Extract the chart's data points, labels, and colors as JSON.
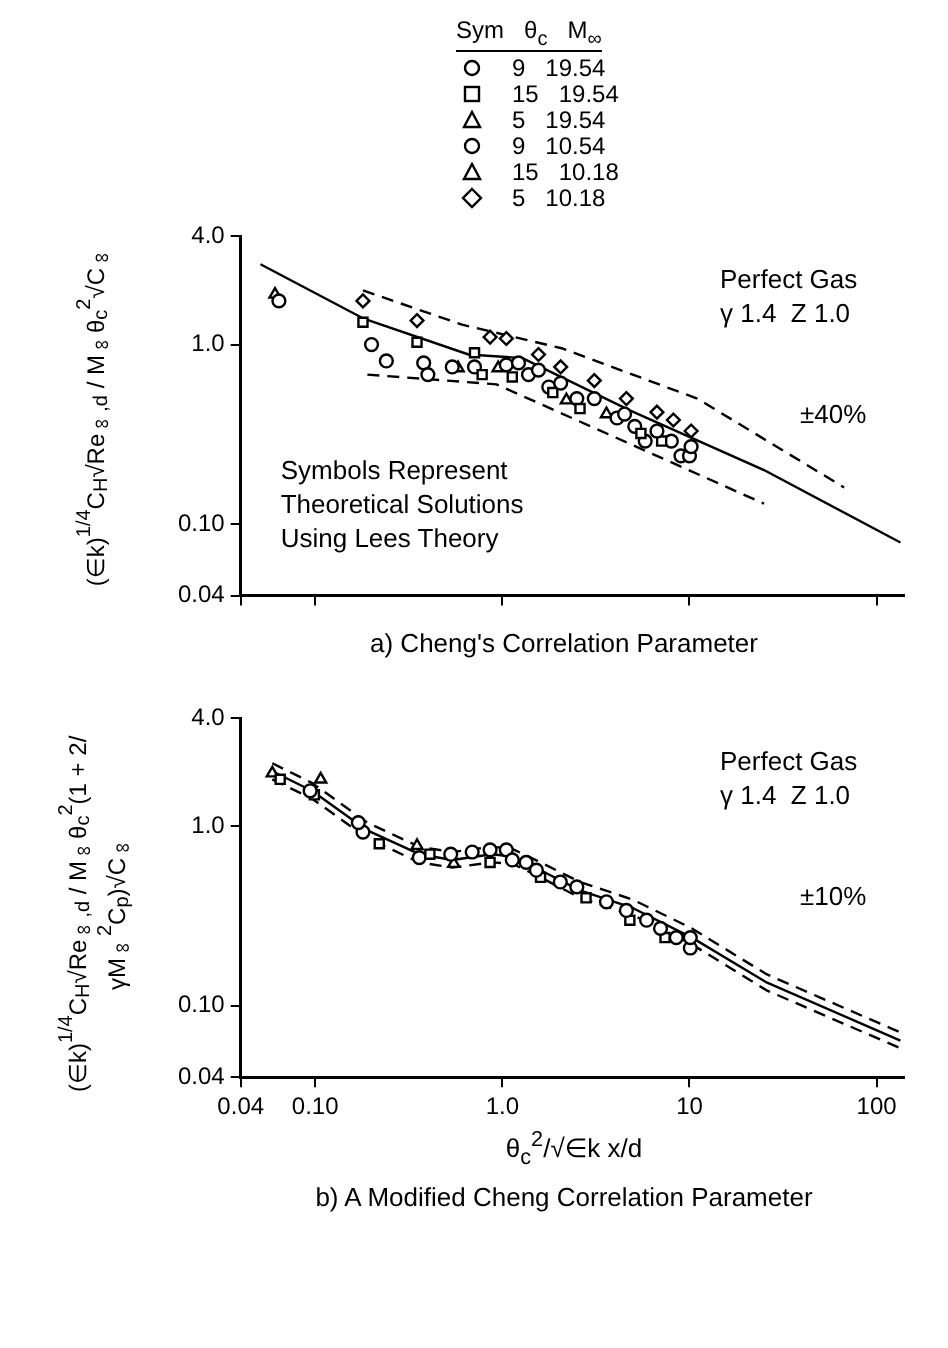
{
  "chart_data": [
    {
      "type": "scatter",
      "title": "a) Cheng's Correlation Parameter",
      "ylabel": "(∈k)$^{1/4}$C$_{H}$√Re$_{∞,d}$ / M$_{∞}$θ$_{c}$$^{2}$√C$_{∞}$",
      "legend_title": "Sym   θ$_{c}$   M$_{∞}$",
      "legend": "top right",
      "log": "xy",
      "grid": false,
      "tick_labels": "y",
      "ylim": [
        0.04,
        4.0
      ],
      "xlim": [
        0.04,
        140
      ],
      "xticks": [
        {
          "value": 0.04,
          "label": null
        },
        {
          "value": 0.1,
          "label": null
        },
        {
          "value": 1,
          "label": null
        },
        {
          "value": 10,
          "label": null
        },
        {
          "value": 100,
          "label": null
        }
      ],
      "yticks": [
        {
          "value": 0.04,
          "label": "0.04"
        },
        {
          "value": 0.1,
          "label": "0.10"
        },
        {
          "value": 1,
          "label": "1.0"
        },
        {
          "value": 4,
          "label": "4.0"
        }
      ],
      "annotations": [
        "Perfect Gas",
        "γ 1.4  Z 1.0",
        "Symbols Represent Theoretical Solutions Using Lees Theory",
        "±40%"
      ],
      "series": [
        {
          "name": "9   19.54",
          "color": "#000000",
          "marker": "circle",
          "x": [
            0.2,
            0.54,
            1.05,
            1.22,
            1.56,
            2.05,
            3.1,
            4.5,
            6.7,
            10.2
          ],
          "values": [
            1.0,
            0.75,
            0.77,
            0.79,
            0.72,
            0.61,
            0.5,
            0.41,
            0.33,
            0.27
          ]
        },
        {
          "name": "15   19.54",
          "color": "#000000",
          "marker": "square",
          "x": [
            0.18,
            0.35,
            0.71,
            0.78,
            1.13,
            1.86,
            2.6,
            5.5,
            7.1
          ],
          "values": [
            1.33,
            1.03,
            0.9,
            0.68,
            0.66,
            0.54,
            0.44,
            0.32,
            0.29
          ]
        },
        {
          "name": "5   19.54",
          "color": "#000000",
          "marker": "triangle"
        },
        {
          "name": "9   10.54",
          "color": "#000000",
          "marker": "circle",
          "x": [
            0.064,
            0.24,
            0.38,
            0.4,
            0.71,
            1.38,
            1.77,
            2.5,
            4.1,
            5.1,
            5.8,
            8.0,
            9.0,
            10
          ],
          "values": [
            1.75,
            0.81,
            0.79,
            0.68,
            0.75,
            0.68,
            0.58,
            0.5,
            0.39,
            0.35,
            0.29,
            0.29,
            0.24,
            0.24
          ]
        },
        {
          "name": "15   10.18",
          "color": "#000000",
          "marker": "triangle",
          "x": [
            0.061,
            0.58,
            0.95,
            2.2,
            3.6
          ],
          "values": [
            1.9,
            0.74,
            0.74,
            0.49,
            0.41
          ]
        },
        {
          "name": "5   10.18",
          "color": "#000000",
          "marker": "diamond",
          "x": [
            0.18,
            0.35,
            0.86,
            1.05,
            1.56,
            2.05,
            3.1,
            4.6,
            6.7,
            8.2,
            10.2
          ],
          "values": [
            1.75,
            1.36,
            1.1,
            1.08,
            0.88,
            0.75,
            0.63,
            0.5,
            0.42,
            0.38,
            0.33
          ]
        },
        {
          "type": "line",
          "color": "#000000",
          "marker": "none",
          "line_style": "solid",
          "x": [
            0.051,
            0.18,
            0.66,
            1.28,
            4.8,
            25,
            134
          ],
          "values": [
            2.8,
            1.4,
            0.88,
            0.84,
            0.43,
            0.2,
            0.079
          ]
        },
        {
          "type": "line",
          "color": "#000000",
          "marker": "none",
          "line_style": "dashed",
          "x": [
            0.18,
            0.61,
            2.1,
            11,
            67
          ],
          "values": [
            2.0,
            1.29,
            0.95,
            0.5,
            0.16
          ]
        },
        {
          "type": "line",
          "color": "#000000",
          "marker": "none",
          "line_style": "dashed",
          "x": [
            0.19,
            0.93,
            4.8,
            25
          ],
          "values": [
            0.68,
            0.6,
            0.28,
            0.13
          ]
        }
      ]
    },
    {
      "type": "scatter",
      "title": "b) A Modified Cheng Correlation Parameter",
      "ylabel": "(∈k)$^{1/4}$C$_{H}$√Re$_{∞,d}$ / M$_{∞}$θ$_{c}$$^{2}$(1 + 2/γM$_{∞}$$^{2}$C$_{p}$)√C$_{∞}$",
      "xlabel": "θ$_{c}$$^{2}$/√∈k  x/d",
      "log": "xy",
      "grid": false,
      "ylim": [
        0.04,
        4.0
      ],
      "xlim": [
        0.04,
        140
      ],
      "xticks": [
        {
          "value": 0.04,
          "label": "0.04"
        },
        {
          "value": 0.1,
          "label": "0.10"
        },
        {
          "value": 1,
          "label": "1.0"
        },
        10,
        100
      ],
      "yticks": [
        {
          "value": 0.04,
          "label": "0.04"
        },
        {
          "value": 0.1,
          "label": "0.10"
        },
        {
          "value": 1,
          "label": "1.0"
        },
        {
          "value": 4,
          "label": "4.0"
        }
      ],
      "annotations": [
        "Perfect Gas",
        "γ 1.4  Z 1.0",
        "±10%"
      ],
      "series": [
        {
          "color": "#000000",
          "marker": "circle",
          "x": [
            0.094,
            0.17,
            0.53,
            0.86,
            1.13,
            1.52,
            2.5,
            4.6,
            7.0,
            10.1
          ],
          "values": [
            1.58,
            1.05,
            0.7,
            0.74,
            0.65,
            0.57,
            0.46,
            0.34,
            0.27,
            0.24
          ]
        },
        {
          "color": "#000000",
          "marker": "square",
          "x": [
            0.065,
            0.099,
            0.22,
            0.41,
            0.86,
            1.6,
            2.8,
            4.8,
            7.4
          ],
          "values": [
            1.83,
            1.5,
            0.8,
            0.7,
            0.63,
            0.52,
            0.4,
            0.3,
            0.24
          ]
        },
        {
          "color": "#000000",
          "marker": "triangle",
          "x": [
            0.107,
            0.35,
            0.55
          ],
          "values": [
            1.83,
            0.78,
            0.62
          ]
        },
        {
          "color": "#000000",
          "marker": "circle",
          "x": [
            0.18,
            0.36,
            0.69,
            1.05,
            1.34,
            2.04,
            3.6,
            5.9,
            8.5,
            10.1
          ],
          "values": [
            0.93,
            0.67,
            0.72,
            0.74,
            0.63,
            0.49,
            0.38,
            0.3,
            0.24,
            0.21
          ]
        },
        {
          "color": "#000000",
          "marker": "triangle",
          "x": [
            0.059
          ],
          "values": [
            1.98
          ]
        },
        {
          "type": "line",
          "color": "#000000",
          "marker": "none",
          "line_style": "solid",
          "x": [
            0.059,
            0.096,
            0.19,
            0.36,
            0.54,
            0.88,
            1.13,
            1.6,
            2.6,
            5.0,
            10.3,
            25.8,
            134
          ],
          "values": [
            2.03,
            1.58,
            0.95,
            0.7,
            0.65,
            0.7,
            0.68,
            0.57,
            0.44,
            0.35,
            0.24,
            0.135,
            0.064
          ]
        },
        {
          "type": "line",
          "color": "#000000",
          "marker": "none",
          "line_style": "dashed",
          "x": [
            0.059,
            0.096,
            0.19,
            0.36,
            0.54,
            0.88,
            1.13,
            1.6,
            2.6,
            5.0,
            10.3,
            25.8,
            134
          ],
          "values": [
            2.25,
            1.75,
            1.05,
            0.77,
            0.72,
            0.77,
            0.75,
            0.63,
            0.49,
            0.39,
            0.27,
            0.15,
            0.071
          ]
        },
        {
          "type": "line",
          "color": "#000000",
          "marker": "none",
          "line_style": "dashed",
          "x": [
            0.059,
            0.096,
            0.19,
            0.36,
            0.54,
            0.88,
            1.13,
            1.6,
            2.6,
            5.0,
            10.3,
            25.8,
            134
          ],
          "values": [
            1.83,
            1.43,
            0.86,
            0.63,
            0.59,
            0.63,
            0.62,
            0.52,
            0.4,
            0.32,
            0.22,
            0.122,
            0.058
          ]
        }
      ]
    }
  ]
}
